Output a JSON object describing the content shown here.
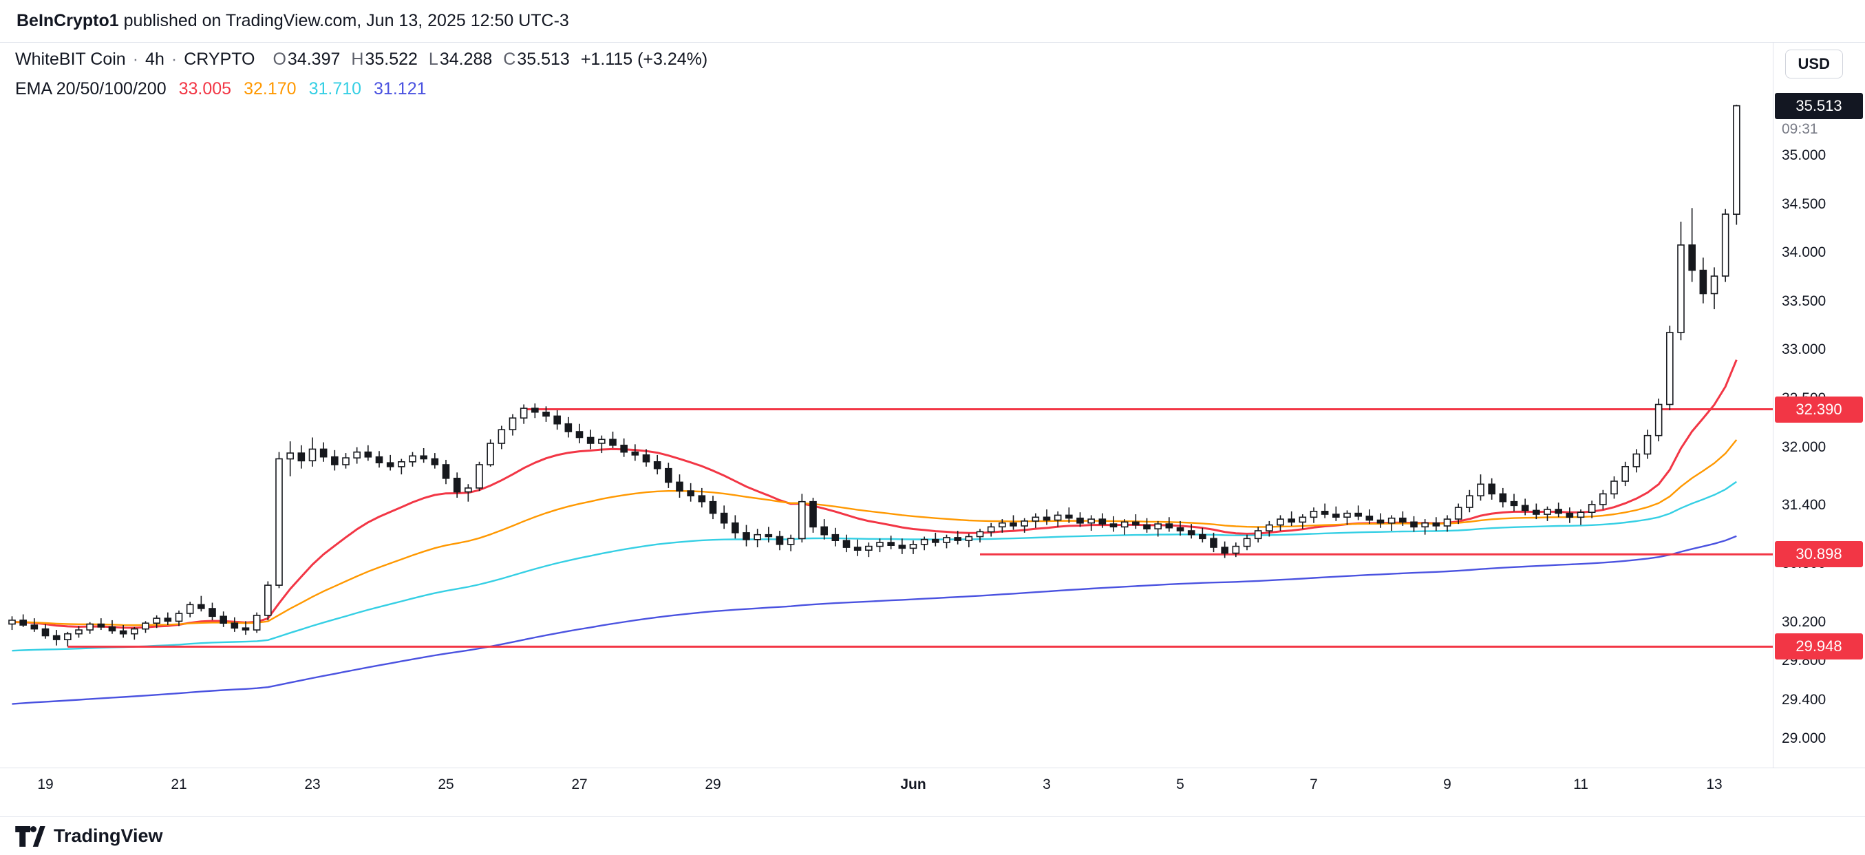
{
  "attribution": {
    "user": "BeInCrypto1",
    "text": "published on TradingView.com, Jun 13, 2025 12:50 UTC-3"
  },
  "toolbar": {
    "currency": "USD"
  },
  "legend": {
    "symbol": "WhiteBIT Coin",
    "separator": "·",
    "interval": "4h",
    "market": "CRYPTO",
    "ohlc": {
      "o_label": "O",
      "o": "34.397",
      "h_label": "H",
      "h": "35.522",
      "l_label": "L",
      "l": "34.288",
      "c_label": "C",
      "c": "35.513",
      "change": "+1.115 (+3.24%)"
    },
    "ema": {
      "label": "EMA 20/50/100/200",
      "values": [
        "33.005",
        "32.170",
        "31.710",
        "31.121"
      ]
    }
  },
  "price_axis": {
    "last_price": "35.513",
    "countdown": "09:31",
    "labels": [
      {
        "text": "35.000",
        "value": 35.0
      },
      {
        "text": "34.500",
        "value": 34.5
      },
      {
        "text": "34.000",
        "value": 34.0
      },
      {
        "text": "33.500",
        "value": 33.5
      },
      {
        "text": "33.000",
        "value": 33.0
      },
      {
        "text": "32.500",
        "value": 32.5
      },
      {
        "text": "32.000",
        "value": 32.0
      },
      {
        "text": "31.400",
        "value": 31.4
      },
      {
        "text": "30.800",
        "value": 30.8
      },
      {
        "text": "30.200",
        "value": 30.2
      },
      {
        "text": "29.800",
        "value": 29.8
      },
      {
        "text": "29.400",
        "value": 29.4
      },
      {
        "text": "29.000",
        "value": 29.0
      }
    ]
  },
  "levels": [
    {
      "label": "32.390",
      "price": 32.39,
      "start_index": 46
    },
    {
      "label": "30.898",
      "price": 30.898,
      "start_index": 87
    },
    {
      "label": "29.948",
      "price": 29.948,
      "start_index": 5
    }
  ],
  "time_axis": [
    {
      "label": "19",
      "day": 19
    },
    {
      "label": "21",
      "day": 21
    },
    {
      "label": "23",
      "day": 23
    },
    {
      "label": "25",
      "day": 25
    },
    {
      "label": "27",
      "day": 27
    },
    {
      "label": "29",
      "day": 29
    },
    {
      "label": "Jun",
      "day": 32,
      "bold": true
    },
    {
      "label": "3",
      "day": 34
    },
    {
      "label": "5",
      "day": 36
    },
    {
      "label": "7",
      "day": 38
    },
    {
      "label": "9",
      "day": 40
    },
    {
      "label": "11",
      "day": 42
    },
    {
      "label": "13",
      "day": 44
    }
  ],
  "colors": {
    "level": "#f23645",
    "candle": "#16181d",
    "last_badge_bg": "#131722",
    "border": "#e0e3eb",
    "axis_text": "#131722"
  },
  "footer": {
    "brand": "TradingView"
  },
  "chart_data": {
    "type": "candlestick",
    "title": "WhiteBIT Coin 4h CRYPTO",
    "interval_hours": 4,
    "start": "May 18 12:00",
    "ylim": [
      28.85,
      35.8
    ],
    "candle_format": [
      "open",
      "high",
      "low",
      "close"
    ],
    "candles": [
      [
        30.18,
        30.26,
        30.12,
        30.22
      ],
      [
        30.22,
        30.28,
        30.15,
        30.17
      ],
      [
        30.17,
        30.24,
        30.1,
        30.13
      ],
      [
        30.13,
        30.18,
        30.03,
        30.06
      ],
      [
        30.06,
        30.12,
        29.96,
        30.02
      ],
      [
        30.02,
        30.1,
        29.95,
        30.08
      ],
      [
        30.08,
        30.16,
        30.04,
        30.12
      ],
      [
        30.12,
        30.2,
        30.08,
        30.18
      ],
      [
        30.18,
        30.24,
        30.12,
        30.15
      ],
      [
        30.15,
        30.22,
        30.08,
        30.11
      ],
      [
        30.11,
        30.17,
        30.04,
        30.08
      ],
      [
        30.08,
        30.15,
        30.02,
        30.13
      ],
      [
        30.13,
        30.21,
        30.09,
        30.19
      ],
      [
        30.19,
        30.27,
        30.14,
        30.24
      ],
      [
        30.24,
        30.3,
        30.17,
        30.21
      ],
      [
        30.21,
        30.32,
        30.16,
        30.29
      ],
      [
        30.29,
        30.41,
        30.25,
        30.38
      ],
      [
        30.38,
        30.47,
        30.31,
        30.34
      ],
      [
        30.34,
        30.4,
        30.22,
        30.26
      ],
      [
        30.26,
        30.31,
        30.15,
        30.19
      ],
      [
        30.19,
        30.25,
        30.1,
        30.14
      ],
      [
        30.14,
        30.21,
        30.07,
        30.12
      ],
      [
        30.12,
        30.3,
        30.09,
        30.27
      ],
      [
        30.27,
        30.62,
        30.22,
        30.58
      ],
      [
        30.58,
        31.95,
        30.55,
        31.88
      ],
      [
        31.88,
        32.06,
        31.7,
        31.94
      ],
      [
        31.94,
        32.02,
        31.78,
        31.86
      ],
      [
        31.86,
        32.1,
        31.8,
        31.98
      ],
      [
        31.98,
        32.05,
        31.85,
        31.9
      ],
      [
        31.9,
        31.97,
        31.76,
        31.82
      ],
      [
        31.82,
        31.94,
        31.78,
        31.89
      ],
      [
        31.89,
        32.0,
        31.83,
        31.95
      ],
      [
        31.95,
        32.02,
        31.86,
        31.9
      ],
      [
        31.9,
        31.96,
        31.79,
        31.84
      ],
      [
        31.84,
        31.92,
        31.76,
        31.8
      ],
      [
        31.8,
        31.88,
        31.72,
        31.85
      ],
      [
        31.85,
        31.95,
        31.8,
        31.91
      ],
      [
        31.91,
        31.99,
        31.84,
        31.88
      ],
      [
        31.88,
        31.94,
        31.78,
        31.82
      ],
      [
        31.82,
        31.87,
        31.62,
        31.68
      ],
      [
        31.68,
        31.74,
        31.48,
        31.54
      ],
      [
        31.54,
        31.62,
        31.44,
        31.58
      ],
      [
        31.58,
        31.85,
        31.55,
        31.82
      ],
      [
        31.82,
        32.08,
        31.8,
        32.04
      ],
      [
        32.04,
        32.22,
        31.98,
        32.18
      ],
      [
        32.18,
        32.34,
        32.12,
        32.3
      ],
      [
        32.3,
        32.44,
        32.24,
        32.4
      ],
      [
        32.4,
        32.45,
        32.3,
        32.36
      ],
      [
        32.36,
        32.42,
        32.26,
        32.32
      ],
      [
        32.32,
        32.38,
        32.18,
        32.24
      ],
      [
        32.24,
        32.31,
        32.1,
        32.16
      ],
      [
        32.16,
        32.24,
        32.04,
        32.1
      ],
      [
        32.1,
        32.18,
        31.98,
        32.04
      ],
      [
        32.04,
        32.12,
        31.94,
        32.08
      ],
      [
        32.08,
        32.16,
        31.99,
        32.02
      ],
      [
        32.02,
        32.09,
        31.9,
        31.95
      ],
      [
        31.95,
        32.03,
        31.86,
        31.92
      ],
      [
        31.92,
        31.98,
        31.8,
        31.85
      ],
      [
        31.85,
        31.92,
        31.72,
        31.78
      ],
      [
        31.78,
        31.84,
        31.58,
        31.64
      ],
      [
        31.64,
        31.72,
        31.48,
        31.55
      ],
      [
        31.55,
        31.63,
        31.44,
        31.5
      ],
      [
        31.5,
        31.58,
        31.38,
        31.44
      ],
      [
        31.44,
        31.5,
        31.26,
        31.32
      ],
      [
        31.32,
        31.4,
        31.16,
        31.22
      ],
      [
        31.22,
        31.3,
        31.06,
        31.12
      ],
      [
        31.12,
        31.2,
        30.98,
        31.05
      ],
      [
        31.05,
        31.16,
        30.97,
        31.1
      ],
      [
        31.1,
        31.18,
        31.02,
        31.08
      ],
      [
        31.08,
        31.14,
        30.94,
        31.0
      ],
      [
        31.0,
        31.1,
        30.93,
        31.06
      ],
      [
        31.06,
        31.52,
        31.02,
        31.44
      ],
      [
        31.44,
        31.48,
        31.12,
        31.18
      ],
      [
        31.18,
        31.26,
        31.05,
        31.1
      ],
      [
        31.1,
        31.17,
        30.98,
        31.04
      ],
      [
        31.04,
        31.1,
        30.92,
        30.97
      ],
      [
        30.97,
        31.05,
        30.88,
        30.94
      ],
      [
        30.94,
        31.02,
        30.87,
        30.98
      ],
      [
        30.98,
        31.06,
        30.92,
        31.02
      ],
      [
        31.02,
        31.09,
        30.95,
        30.99
      ],
      [
        30.99,
        31.06,
        30.9,
        30.96
      ],
      [
        30.96,
        31.04,
        30.9,
        31.0
      ],
      [
        31.0,
        31.08,
        30.94,
        31.05
      ],
      [
        31.05,
        31.12,
        30.98,
        31.02
      ],
      [
        31.02,
        31.1,
        30.96,
        31.07
      ],
      [
        31.07,
        31.14,
        31.0,
        31.04
      ],
      [
        31.04,
        31.11,
        30.97,
        31.08
      ],
      [
        31.08,
        31.16,
        31.02,
        31.13
      ],
      [
        31.13,
        31.22,
        31.08,
        31.18
      ],
      [
        31.18,
        31.26,
        31.12,
        31.22
      ],
      [
        31.22,
        31.3,
        31.15,
        31.19
      ],
      [
        31.19,
        31.27,
        31.12,
        31.24
      ],
      [
        31.24,
        31.32,
        31.17,
        31.28
      ],
      [
        31.28,
        31.36,
        31.2,
        31.25
      ],
      [
        31.25,
        31.34,
        31.18,
        31.3
      ],
      [
        31.3,
        31.38,
        31.22,
        31.27
      ],
      [
        31.27,
        31.33,
        31.18,
        31.22
      ],
      [
        31.22,
        31.3,
        31.14,
        31.26
      ],
      [
        31.26,
        31.32,
        31.17,
        31.21
      ],
      [
        31.21,
        31.29,
        31.13,
        31.18
      ],
      [
        31.18,
        31.26,
        31.1,
        31.23
      ],
      [
        31.23,
        31.31,
        31.16,
        31.2
      ],
      [
        31.2,
        31.27,
        31.12,
        31.16
      ],
      [
        31.16,
        31.24,
        31.08,
        31.21
      ],
      [
        31.21,
        31.28,
        31.13,
        31.17
      ],
      [
        31.17,
        31.24,
        31.09,
        31.14
      ],
      [
        31.14,
        31.21,
        31.06,
        31.1
      ],
      [
        31.1,
        31.17,
        31.02,
        31.06
      ],
      [
        31.06,
        31.12,
        30.92,
        30.97
      ],
      [
        30.97,
        31.03,
        30.86,
        30.91
      ],
      [
        30.91,
        31.02,
        30.87,
        30.98
      ],
      [
        30.98,
        31.1,
        30.94,
        31.06
      ],
      [
        31.06,
        31.18,
        31.02,
        31.14
      ],
      [
        31.14,
        31.24,
        31.08,
        31.2
      ],
      [
        31.2,
        31.3,
        31.14,
        31.26
      ],
      [
        31.26,
        31.34,
        31.19,
        31.23
      ],
      [
        31.23,
        31.31,
        31.16,
        31.28
      ],
      [
        31.28,
        31.38,
        31.22,
        31.34
      ],
      [
        31.34,
        31.42,
        31.27,
        31.31
      ],
      [
        31.31,
        31.39,
        31.24,
        31.28
      ],
      [
        31.28,
        31.35,
        31.2,
        31.32
      ],
      [
        31.32,
        31.4,
        31.25,
        31.29
      ],
      [
        31.29,
        31.36,
        31.21,
        31.25
      ],
      [
        31.25,
        31.32,
        31.17,
        31.22
      ],
      [
        31.22,
        31.3,
        31.14,
        31.27
      ],
      [
        31.27,
        31.34,
        31.19,
        31.23
      ],
      [
        31.23,
        31.29,
        31.13,
        31.18
      ],
      [
        31.18,
        31.26,
        31.1,
        31.22
      ],
      [
        31.22,
        31.28,
        31.14,
        31.19
      ],
      [
        31.19,
        31.3,
        31.13,
        31.26
      ],
      [
        31.26,
        31.42,
        31.21,
        31.38
      ],
      [
        31.38,
        31.56,
        31.33,
        31.5
      ],
      [
        31.5,
        31.72,
        31.45,
        31.62
      ],
      [
        31.62,
        31.68,
        31.46,
        31.52
      ],
      [
        31.52,
        31.58,
        31.38,
        31.44
      ],
      [
        31.44,
        31.52,
        31.34,
        31.4
      ],
      [
        31.4,
        31.47,
        31.3,
        31.35
      ],
      [
        31.35,
        31.42,
        31.26,
        31.31
      ],
      [
        31.31,
        31.39,
        31.24,
        31.36
      ],
      [
        31.36,
        31.43,
        31.28,
        31.32
      ],
      [
        31.32,
        31.38,
        31.22,
        31.28
      ],
      [
        31.28,
        31.36,
        31.2,
        31.33
      ],
      [
        31.33,
        31.45,
        31.27,
        31.41
      ],
      [
        31.41,
        31.56,
        31.36,
        31.52
      ],
      [
        31.52,
        31.7,
        31.47,
        31.65
      ],
      [
        31.65,
        31.85,
        31.6,
        31.8
      ],
      [
        31.8,
        31.98,
        31.74,
        31.93
      ],
      [
        31.93,
        32.18,
        31.88,
        32.12
      ],
      [
        32.12,
        32.5,
        32.06,
        32.44
      ],
      [
        32.44,
        33.25,
        32.38,
        33.18
      ],
      [
        33.18,
        34.32,
        33.1,
        34.08
      ],
      [
        34.08,
        34.46,
        33.7,
        33.82
      ],
      [
        33.82,
        33.95,
        33.48,
        33.58
      ],
      [
        33.58,
        33.85,
        33.42,
        33.76
      ],
      [
        33.76,
        34.45,
        33.7,
        34.397
      ],
      [
        34.397,
        35.522,
        34.288,
        35.513
      ]
    ],
    "emas": [
      {
        "period": 20,
        "color": "#f23645",
        "seed": 30.2,
        "legend_value": 33.005
      },
      {
        "period": 50,
        "color": "#ff9800",
        "seed": 30.2,
        "legend_value": 32.17
      },
      {
        "period": 100,
        "color": "#35cfe4",
        "seed": 29.9,
        "legend_value": 31.71
      },
      {
        "period": 200,
        "color": "#4a52e0",
        "seed": 29.35,
        "legend_value": 31.121
      }
    ],
    "horizontal_levels": [
      32.39,
      30.898,
      29.948
    ]
  }
}
